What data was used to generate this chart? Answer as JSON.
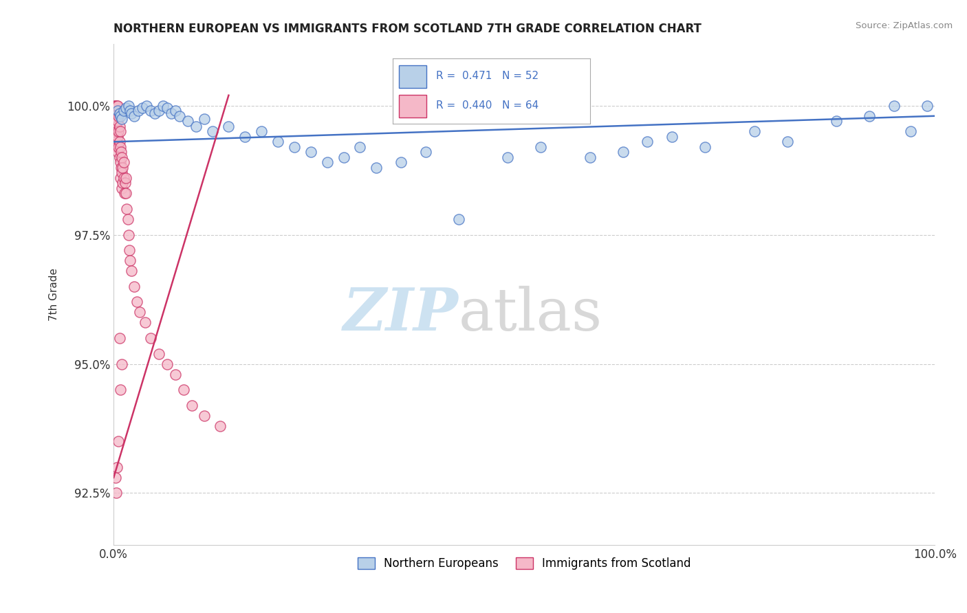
{
  "title": "NORTHERN EUROPEAN VS IMMIGRANTS FROM SCOTLAND 7TH GRADE CORRELATION CHART",
  "ylabel": "7th Grade",
  "source": "Source: ZipAtlas.com",
  "xlim": [
    0.0,
    1.0
  ],
  "ylim": [
    91.5,
    101.2
  ],
  "yticks": [
    92.5,
    95.0,
    97.5,
    100.0
  ],
  "ytick_labels": [
    "92.5%",
    "95.0%",
    "97.5%",
    "100.0%"
  ],
  "xticks": [
    0.0,
    1.0
  ],
  "xtick_labels": [
    "0.0%",
    "100.0%"
  ],
  "legend_R1": "R =  0.471",
  "legend_N1": "N = 52",
  "legend_R2": "R =  0.440",
  "legend_N2": "N = 64",
  "legend_label1": "Northern Europeans",
  "legend_label2": "Immigrants from Scotland",
  "blue_color": "#b8d0e8",
  "pink_color": "#f5b8c8",
  "line_blue": "#4472c4",
  "line_pink": "#cc3366",
  "watermark1": "ZIP",
  "watermark2": "atlas",
  "blue_scatter_x": [
    0.005,
    0.007,
    0.008,
    0.01,
    0.012,
    0.015,
    0.018,
    0.02,
    0.022,
    0.025,
    0.03,
    0.035,
    0.04,
    0.045,
    0.05,
    0.055,
    0.06,
    0.065,
    0.07,
    0.075,
    0.08,
    0.09,
    0.1,
    0.11,
    0.12,
    0.14,
    0.16,
    0.18,
    0.2,
    0.22,
    0.24,
    0.26,
    0.28,
    0.3,
    0.32,
    0.35,
    0.38,
    0.42,
    0.48,
    0.52,
    0.58,
    0.62,
    0.65,
    0.68,
    0.72,
    0.78,
    0.82,
    0.88,
    0.92,
    0.95,
    0.97,
    0.99
  ],
  "blue_scatter_y": [
    99.9,
    99.85,
    99.8,
    99.75,
    99.9,
    99.95,
    100.0,
    99.9,
    99.85,
    99.8,
    99.9,
    99.95,
    100.0,
    99.9,
    99.85,
    99.9,
    100.0,
    99.95,
    99.85,
    99.9,
    99.8,
    99.7,
    99.6,
    99.75,
    99.5,
    99.6,
    99.4,
    99.5,
    99.3,
    99.2,
    99.1,
    98.9,
    99.0,
    99.2,
    98.8,
    98.9,
    99.1,
    97.8,
    99.0,
    99.2,
    99.0,
    99.1,
    99.3,
    99.4,
    99.2,
    99.5,
    99.3,
    99.7,
    99.8,
    100.0,
    99.5,
    100.0
  ],
  "pink_scatter_x": [
    0.001,
    0.001,
    0.001,
    0.002,
    0.002,
    0.002,
    0.003,
    0.003,
    0.003,
    0.004,
    0.004,
    0.004,
    0.005,
    0.005,
    0.005,
    0.005,
    0.006,
    0.006,
    0.006,
    0.007,
    0.007,
    0.007,
    0.008,
    0.008,
    0.008,
    0.008,
    0.009,
    0.009,
    0.01,
    0.01,
    0.01,
    0.011,
    0.011,
    0.012,
    0.012,
    0.013,
    0.014,
    0.015,
    0.015,
    0.016,
    0.017,
    0.018,
    0.019,
    0.02,
    0.022,
    0.025,
    0.028,
    0.032,
    0.038,
    0.045,
    0.055,
    0.065,
    0.075,
    0.085,
    0.095,
    0.11,
    0.13,
    0.01,
    0.008,
    0.006,
    0.004,
    0.002,
    0.003,
    0.007
  ],
  "pink_scatter_y": [
    100.0,
    99.8,
    99.5,
    100.0,
    99.7,
    99.4,
    100.0,
    99.6,
    99.3,
    100.0,
    99.5,
    99.2,
    100.0,
    99.7,
    99.4,
    99.1,
    99.8,
    99.5,
    99.2,
    99.6,
    99.3,
    99.0,
    99.5,
    99.2,
    98.9,
    98.6,
    99.1,
    98.8,
    99.0,
    98.7,
    98.4,
    98.8,
    98.5,
    98.9,
    98.6,
    98.3,
    98.5,
    98.6,
    98.3,
    98.0,
    97.8,
    97.5,
    97.2,
    97.0,
    96.8,
    96.5,
    96.2,
    96.0,
    95.8,
    95.5,
    95.2,
    95.0,
    94.8,
    94.5,
    94.2,
    94.0,
    93.8,
    95.0,
    94.5,
    93.5,
    93.0,
    92.8,
    92.5,
    95.5
  ],
  "blue_trendline_x": [
    0.0,
    1.0
  ],
  "blue_trendline_y": [
    99.3,
    99.8
  ],
  "pink_trendline_x": [
    0.0,
    0.14
  ],
  "pink_trendline_y": [
    92.8,
    100.2
  ]
}
